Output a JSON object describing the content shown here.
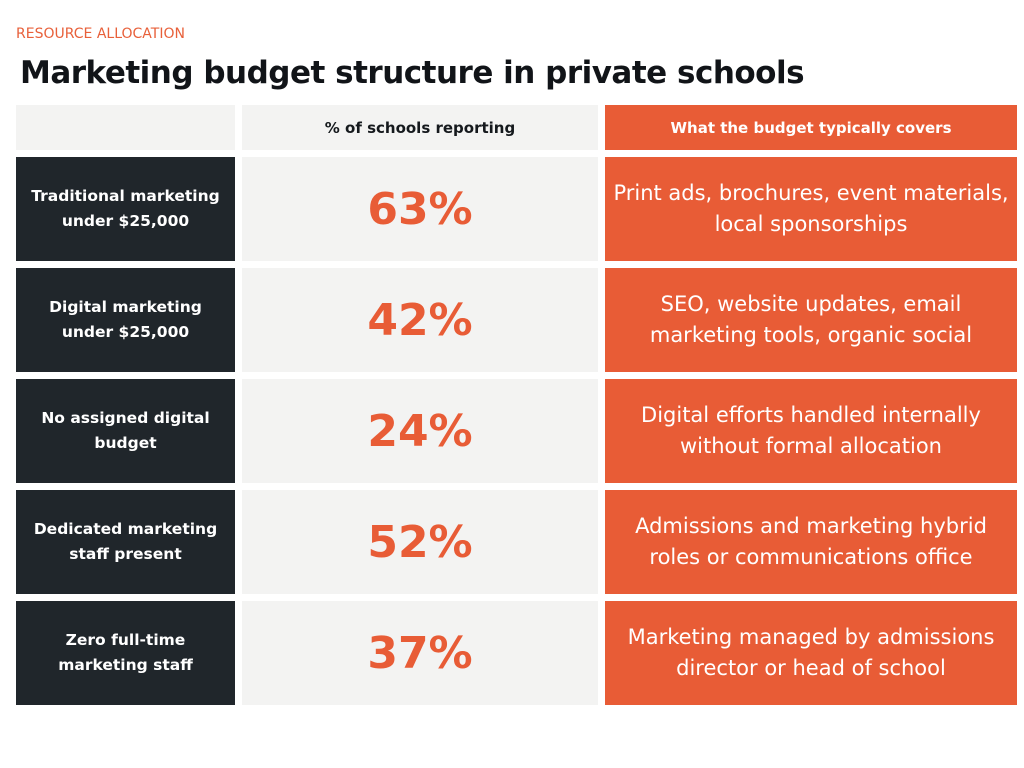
{
  "eyebrow": "RESOURCE ALLOCATION",
  "title": "Marketing budget structure in private schools",
  "colors": {
    "accent": "#e85c36",
    "dark": "#20262b",
    "light": "#f3f3f2"
  },
  "chart_data": {
    "type": "table",
    "title": "Marketing budget structure in private schools",
    "columns": [
      "",
      "% of schools reporting",
      "What the budget typically covers"
    ],
    "rows": [
      {
        "label": "Traditional marketing under $25,000",
        "value": "63%",
        "covers": "Print ads, brochures, event materials, local sponsorships"
      },
      {
        "label": "Digital marketing under $25,000",
        "value": "42%",
        "covers": "SEO, website updates, email marketing tools, organic social"
      },
      {
        "label": "No assigned digital budget",
        "value": "24%",
        "covers": "Digital efforts handled internally without formal allocation"
      },
      {
        "label": "Dedicated marketing staff present",
        "value": "52%",
        "covers": "Admissions and marketing hybrid roles or communications office"
      },
      {
        "label": "Zero full-time marketing staff",
        "value": "37%",
        "covers": "Marketing managed by admissions director or head of school"
      }
    ]
  }
}
